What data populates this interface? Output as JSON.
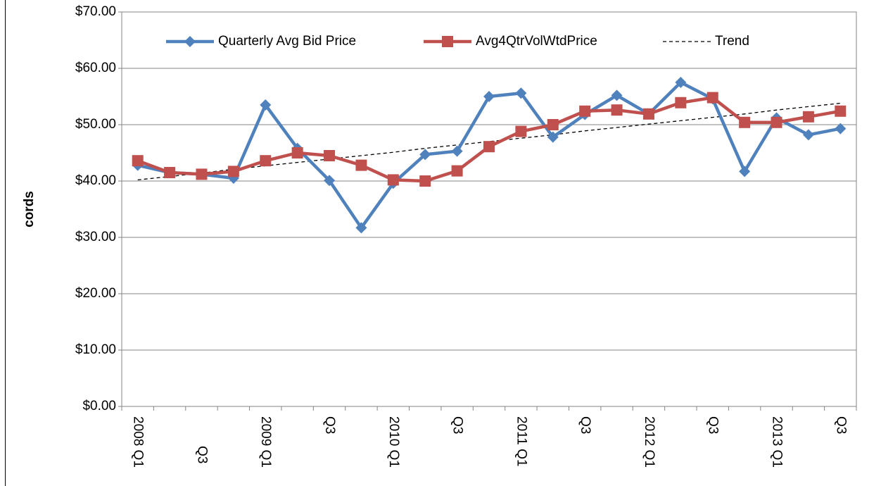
{
  "chart_data": {
    "type": "line",
    "y_label": "cords",
    "categories": [
      "2008 Q1",
      null,
      "Q3",
      null,
      "2009 Q1",
      null,
      "Q3",
      null,
      "2010 Q1",
      null,
      "Q3",
      null,
      "2011 Q1",
      null,
      "Q3",
      null,
      "2012 Q1",
      null,
      "Q3",
      null,
      "2013 Q1",
      null,
      "Q3"
    ],
    "series": [
      {
        "name": "Quarterly Avg Bid Price",
        "color": "#4f81bd",
        "marker": "diamond",
        "values": [
          42.8,
          41.5,
          41.2,
          40.5,
          53.5,
          45.8,
          40.1,
          31.7,
          39.6,
          44.7,
          45.3,
          55.0,
          55.6,
          47.8,
          51.8,
          55.2,
          51.9,
          57.5,
          54.6,
          41.7,
          51.2,
          48.2,
          49.3
        ]
      },
      {
        "name": "Avg4QtrVolWtdPrice",
        "color": "#c0504d",
        "marker": "square",
        "values": [
          43.6,
          41.5,
          41.2,
          41.7,
          43.6,
          45.0,
          44.5,
          42.8,
          40.2,
          40.0,
          41.8,
          46.1,
          48.8,
          50.0,
          52.4,
          52.6,
          51.9,
          53.9,
          54.8,
          50.4,
          50.4,
          51.4,
          52.4
        ]
      },
      {
        "name": "Trend",
        "color": "#000000",
        "dashed": true,
        "values": [
          40.2,
          40.8,
          41.4,
          42.1,
          42.7,
          43.3,
          43.9,
          44.5,
          45.1,
          45.8,
          46.4,
          47.0,
          47.6,
          48.2,
          48.9,
          49.5,
          50.1,
          50.7,
          51.3,
          51.9,
          52.6,
          53.2,
          53.8
        ]
      }
    ],
    "ylim": [
      0,
      70
    ],
    "yticks": [
      {
        "value": 0,
        "label": "$0.00"
      },
      {
        "value": 10,
        "label": "$10.00"
      },
      {
        "value": 20,
        "label": "$20.00"
      },
      {
        "value": 30,
        "label": "$30.00"
      },
      {
        "value": 40,
        "label": "$40.00"
      },
      {
        "value": 50,
        "label": "$50.00"
      },
      {
        "value": 60,
        "label": "$60.00"
      },
      {
        "value": 70,
        "label": "$70.00"
      }
    ],
    "grid": true,
    "legend": "top"
  }
}
